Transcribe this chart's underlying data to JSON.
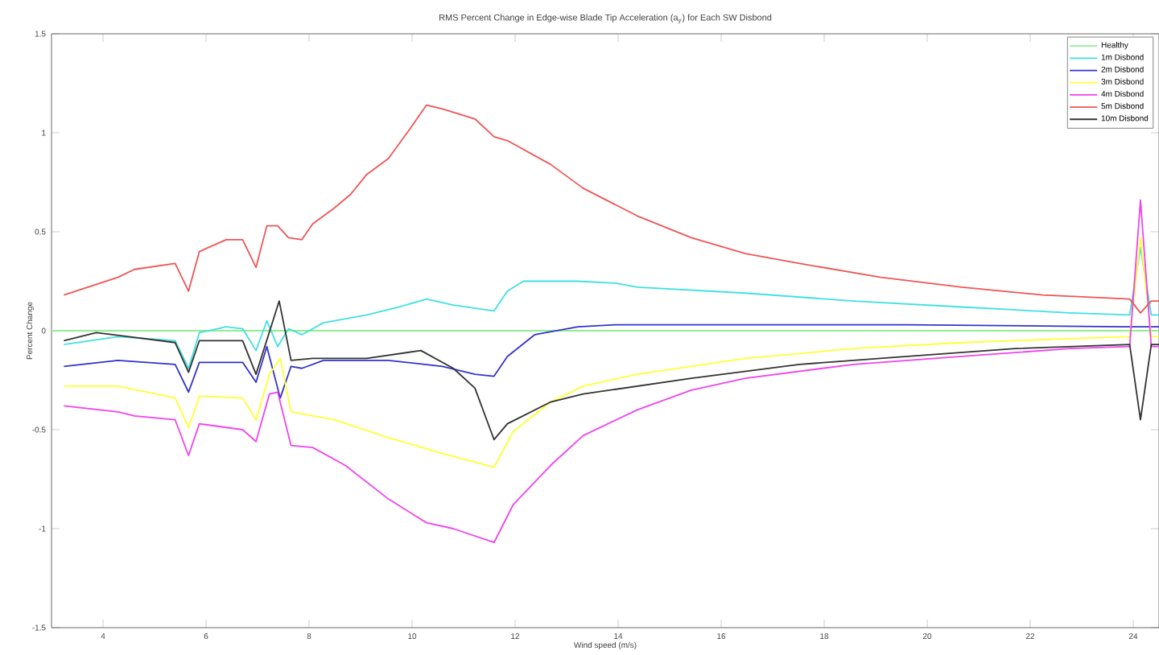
{
  "chart_data": {
    "type": "line",
    "title": "RMS Percent Change in Edge-wise Blade Tip Acceleration (a$_{y}$) for Each SW Disbond",
    "xlabel": "Wind speed (m/s)",
    "ylabel": "Percent Change",
    "xlim": [
      3,
      24.5
    ],
    "ylim": [
      -1.5,
      1.5
    ],
    "xticks": [
      4,
      6,
      8,
      10,
      12,
      14,
      16,
      18,
      20,
      22,
      24
    ],
    "yticks": [
      -1.5,
      -1,
      -0.5,
      0,
      0.5,
      1,
      1.5
    ],
    "grid": false,
    "legend": "top right",
    "series": [
      {
        "name": "Healthy",
        "color": "#90ee90",
        "x": [
          3.0,
          24.5
        ],
        "values": [
          0,
          0
        ]
      },
      {
        "name": "1m Disbond",
        "color": "#40e0e0",
        "x": [
          3.24,
          4.29,
          5.4,
          5.66,
          5.87,
          6.39,
          6.71,
          6.97,
          7.18,
          7.39,
          7.6,
          7.86,
          8.28,
          9.12,
          9.75,
          10.28,
          10.8,
          11.59,
          11.85,
          12.16,
          13.22,
          13.95,
          14.37,
          16.47,
          18.57,
          20.67,
          22.77,
          23.93,
          24.14,
          24.35,
          24.5
        ],
        "values": [
          -0.07,
          -0.03,
          -0.05,
          -0.19,
          -0.01,
          0.02,
          0.01,
          -0.1,
          0.05,
          -0.08,
          0.01,
          -0.02,
          0.04,
          0.08,
          0.12,
          0.16,
          0.13,
          0.1,
          0.2,
          0.25,
          0.25,
          0.24,
          0.22,
          0.19,
          0.15,
          0.12,
          0.09,
          0.08,
          0.42,
          0.08,
          0.08
        ]
      },
      {
        "name": "2m Disbond",
        "color": "#3333cc",
        "x": [
          3.24,
          4.29,
          5.4,
          5.66,
          5.87,
          6.71,
          6.97,
          7.18,
          7.44,
          7.65,
          7.86,
          8.28,
          9.54,
          10.59,
          11.22,
          11.59,
          11.85,
          12.38,
          13.22,
          13.95,
          15.42,
          19.62,
          23.83,
          24.14,
          24.35,
          24.5
        ],
        "values": [
          -0.18,
          -0.15,
          -0.17,
          -0.31,
          -0.16,
          -0.16,
          -0.26,
          -0.08,
          -0.34,
          -0.18,
          -0.19,
          -0.15,
          -0.15,
          -0.18,
          -0.22,
          -0.23,
          -0.13,
          -0.02,
          0.02,
          0.03,
          0.03,
          0.03,
          0.02,
          null,
          0.02,
          0.02
        ]
      },
      {
        "name": "3m Disbond",
        "color": "#ffff33",
        "x": [
          3.24,
          4.29,
          5.4,
          5.66,
          5.87,
          6.71,
          6.97,
          7.23,
          7.44,
          7.65,
          8.49,
          9.54,
          10.59,
          11.59,
          11.96,
          12.69,
          13.32,
          14.37,
          16.47,
          18.57,
          20.67,
          22.77,
          23.93,
          24.14,
          24.35,
          24.5
        ],
        "values": [
          -0.28,
          -0.28,
          -0.34,
          -0.49,
          -0.33,
          -0.34,
          -0.45,
          -0.22,
          -0.14,
          -0.41,
          -0.45,
          -0.54,
          -0.62,
          -0.69,
          -0.51,
          -0.36,
          -0.28,
          -0.22,
          -0.14,
          -0.09,
          -0.06,
          -0.04,
          -0.03,
          0.47,
          -0.03,
          -0.03
        ]
      },
      {
        "name": "4m Disbond",
        "color": "#ee44ee",
        "x": [
          3.24,
          4.29,
          4.61,
          5.4,
          5.66,
          5.87,
          6.71,
          6.97,
          7.23,
          7.39,
          7.65,
          8.07,
          8.7,
          9.54,
          10.28,
          10.8,
          11.59,
          11.96,
          12.69,
          13.32,
          14.37,
          15.42,
          16.47,
          18.57,
          20.67,
          22.77,
          23.93,
          24.14,
          24.35,
          24.5
        ],
        "values": [
          -0.38,
          -0.41,
          -0.43,
          -0.45,
          -0.63,
          -0.47,
          -0.5,
          -0.56,
          -0.32,
          -0.31,
          -0.58,
          -0.59,
          -0.68,
          -0.85,
          -0.97,
          -1.0,
          -1.07,
          -0.88,
          -0.68,
          -0.53,
          -0.4,
          -0.3,
          -0.24,
          -0.17,
          -0.13,
          -0.09,
          -0.08,
          0.66,
          -0.08,
          -0.08
        ]
      },
      {
        "name": "5m Disbond",
        "color": "#ee5555",
        "x": [
          3.24,
          4.29,
          4.61,
          5.4,
          5.66,
          5.87,
          6.39,
          6.71,
          6.97,
          7.18,
          7.39,
          7.6,
          7.86,
          8.07,
          8.49,
          8.81,
          9.12,
          9.54,
          9.96,
          10.28,
          10.59,
          11.22,
          11.59,
          11.85,
          12.69,
          13.32,
          14.37,
          15.42,
          16.47,
          17.52,
          19.1,
          20.67,
          22.25,
          23.93,
          24.14,
          24.35,
          24.5
        ],
        "values": [
          0.18,
          0.27,
          0.31,
          0.34,
          0.2,
          0.4,
          0.46,
          0.46,
          0.32,
          0.53,
          0.53,
          0.47,
          0.46,
          0.54,
          0.62,
          0.69,
          0.79,
          0.87,
          1.02,
          1.14,
          1.12,
          1.07,
          0.98,
          0.96,
          0.84,
          0.72,
          0.58,
          0.47,
          0.39,
          0.34,
          0.27,
          0.22,
          0.18,
          0.16,
          0.09,
          0.15,
          0.15
        ]
      },
      {
        "name": "10m Disbond",
        "color": "#333333",
        "x": [
          3.24,
          3.87,
          4.5,
          5.4,
          5.66,
          5.87,
          6.71,
          6.97,
          7.42,
          7.65,
          8.07,
          9.12,
          10.17,
          10.8,
          11.22,
          11.59,
          11.85,
          12.69,
          13.32,
          15.42,
          17.52,
          19.62,
          21.72,
          23.93,
          24.14,
          24.35,
          24.5
        ],
        "values": [
          -0.05,
          -0.01,
          -0.03,
          -0.06,
          -0.21,
          -0.05,
          -0.05,
          -0.22,
          0.15,
          -0.15,
          -0.14,
          -0.14,
          -0.1,
          -0.19,
          -0.29,
          -0.55,
          -0.47,
          -0.36,
          -0.32,
          -0.24,
          -0.17,
          -0.13,
          -0.09,
          -0.07,
          -0.45,
          -0.07,
          -0.07
        ]
      }
    ]
  }
}
